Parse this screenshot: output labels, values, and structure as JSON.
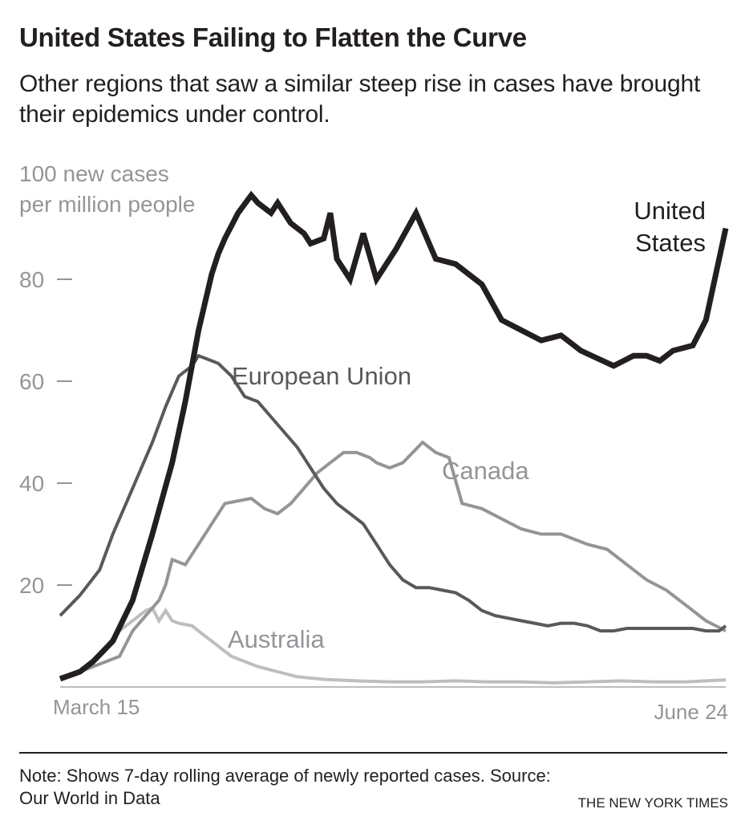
{
  "title": "United States Failing to Flatten the Curve",
  "subtitle": "Other regions that saw a similar steep rise in cases have brought their epidemics under control.",
  "note": "Note:  Shows 7-day rolling average of newly reported cases. Source: Our World in Data",
  "credit": "THE NEW YORK TIMES",
  "chart_data": {
    "type": "line",
    "title": "United States Failing to Flatten the Curve",
    "xlabel": "",
    "ylabel": "new cases per million people",
    "ylabel_lines": [
      "100 new cases",
      "per million people"
    ],
    "x_unit": "days since March 15",
    "xlim": [
      0,
      101
    ],
    "ylim": [
      0,
      100
    ],
    "x_tick_labels": [
      {
        "day": 0,
        "label": "March 15"
      },
      {
        "day": 101,
        "label": "June 24"
      }
    ],
    "y_ticks": [
      20,
      40,
      60,
      80
    ],
    "grid": false,
    "series": [
      {
        "name": "European Union",
        "label": "European Union",
        "color": "#58595b",
        "width": 4,
        "x": [
          0,
          3,
          6,
          8,
          10,
          12,
          14,
          16,
          17,
          18,
          19,
          20,
          21,
          22,
          24,
          26,
          28,
          30,
          32,
          34,
          36,
          38,
          40,
          42,
          44,
          46,
          48,
          50,
          52,
          54,
          56,
          58,
          60,
          62,
          64,
          66,
          68,
          70,
          72,
          74,
          76,
          78,
          80,
          82,
          84,
          86,
          88,
          90,
          92,
          94,
          96,
          98,
          100,
          101
        ],
        "y": [
          14,
          18,
          23,
          30,
          36,
          42,
          48,
          55,
          58,
          61,
          62,
          63,
          65,
          64.5,
          63.5,
          61,
          57,
          56,
          53,
          50,
          47,
          43,
          39,
          36,
          34,
          32,
          28,
          24,
          21,
          19.5,
          19.5,
          19,
          18.5,
          17,
          15,
          14,
          13.5,
          13,
          12.5,
          12,
          12.5,
          12.5,
          12,
          11,
          11,
          11.5,
          11.5,
          11.5,
          11.5,
          11.5,
          11.5,
          11,
          11,
          12
        ]
      },
      {
        "name": "United States",
        "label": "United States",
        "label_lines": [
          "United",
          "States"
        ],
        "color": "#231f20",
        "width": 7,
        "x": [
          0,
          3,
          5,
          8,
          11,
          14,
          17,
          19,
          21,
          23,
          24,
          25,
          27,
          29,
          30,
          32,
          33,
          35,
          37,
          38,
          40,
          41,
          42,
          44,
          46,
          48,
          51,
          54,
          57,
          60,
          64,
          67,
          70,
          73,
          76,
          79,
          84,
          87,
          89,
          91,
          93,
          96,
          98,
          101
        ],
        "y": [
          1.6,
          3,
          5,
          9,
          17,
          30,
          44,
          56,
          70,
          81,
          85,
          88,
          93,
          96.5,
          95,
          93,
          95,
          91,
          89,
          87,
          88,
          93,
          84,
          80,
          89,
          80,
          86,
          93,
          84,
          83,
          79,
          72,
          70,
          68,
          69,
          66,
          63,
          65,
          65,
          64,
          66,
          67,
          72,
          90
        ]
      },
      {
        "name": "Canada",
        "label": "Canada",
        "color": "#939598",
        "width": 4,
        "x": [
          0,
          3,
          5,
          7,
          9,
          11,
          13,
          15,
          16,
          17,
          19,
          21,
          23,
          25,
          27,
          29,
          31,
          33,
          35,
          37,
          39,
          41,
          43,
          45,
          47,
          48,
          50,
          52,
          55,
          57,
          59,
          61,
          64,
          67,
          70,
          73,
          76,
          78,
          80,
          83,
          86,
          89,
          92,
          95,
          98,
          101
        ],
        "y": [
          1.6,
          3,
          4,
          5,
          6,
          11,
          14,
          17,
          20,
          25,
          24,
          28,
          32,
          36,
          36.5,
          37,
          35,
          34,
          36,
          39,
          42,
          44,
          46,
          46,
          45,
          44,
          43,
          44,
          48,
          46,
          45,
          36,
          35,
          33,
          31,
          30,
          30,
          29,
          28,
          27,
          24,
          21,
          19,
          16,
          13,
          11
        ]
      },
      {
        "name": "Australia",
        "label": "Australia",
        "color": "#bcbec0",
        "width": 4,
        "x": [
          0,
          3,
          5,
          7,
          9,
          11,
          13,
          14,
          15,
          16,
          17,
          18,
          20,
          22,
          24,
          26,
          28,
          30,
          33,
          36,
          40,
          45,
          50,
          55,
          60,
          65,
          70,
          75,
          80,
          85,
          90,
          95,
          98,
          101
        ],
        "y": [
          1.6,
          3,
          5,
          8,
          11,
          13,
          15,
          15.5,
          13,
          15,
          13,
          12.5,
          12,
          10,
          8,
          6,
          5,
          4,
          3,
          2,
          1.5,
          1.2,
          1,
          1,
          1.2,
          1,
          1,
          0.8,
          1,
          1.2,
          1,
          1,
          1.2,
          1.4
        ]
      }
    ]
  }
}
